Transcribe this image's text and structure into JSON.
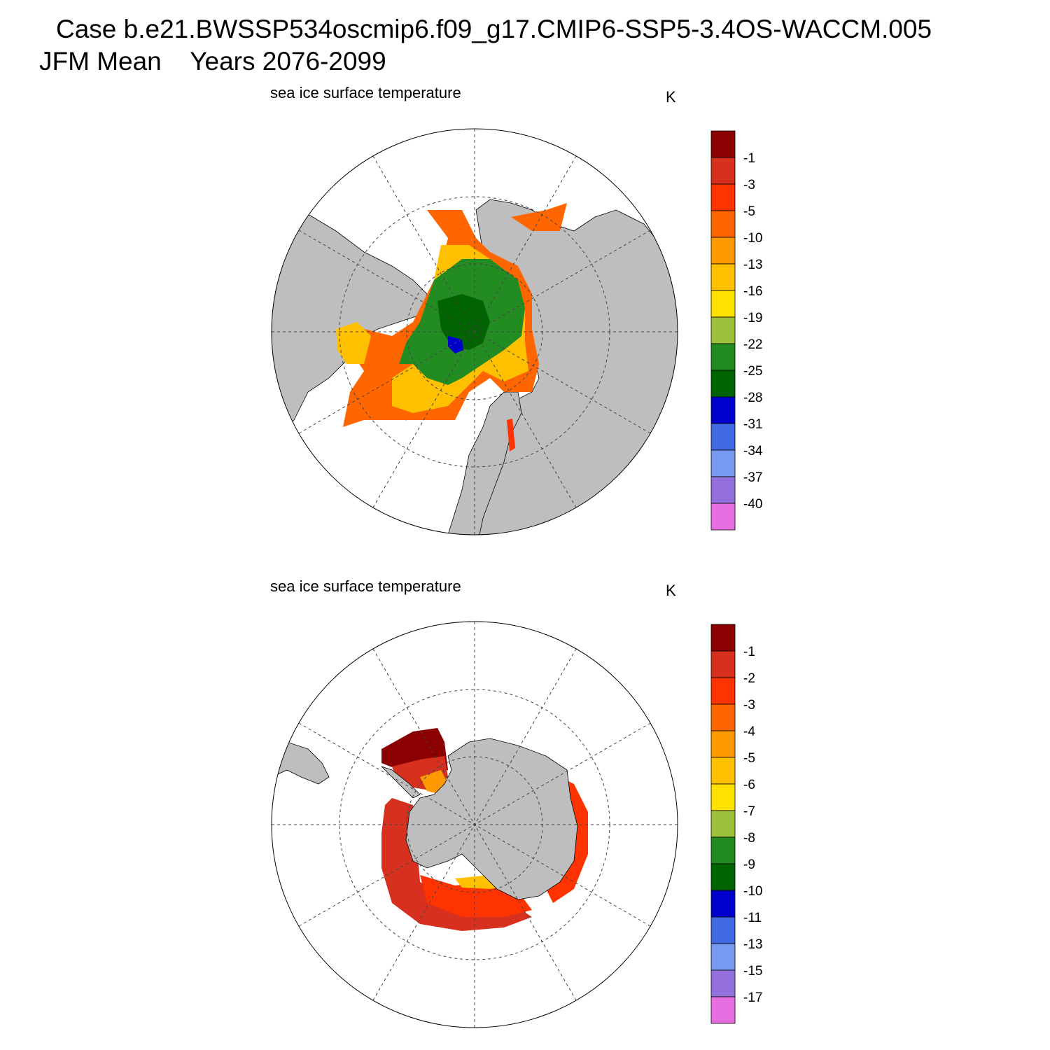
{
  "header": {
    "line1": "Case b.e21.BWSSP534oscmip6.f09_g17.CMIP6-SSP5-3.4OS-WACCM.005",
    "line2": "JFM Mean    Years 2076-2099"
  },
  "colors": {
    "land": "#bebebe",
    "background": "#ffffff",
    "scale": [
      "#8b0000",
      "#d7301f",
      "#ff3300",
      "#ff6600",
      "#ff9900",
      "#ffc000",
      "#ffe100",
      "#9dc13c",
      "#228b22",
      "#006400",
      "#0000cd",
      "#4169e1",
      "#7799f0",
      "#9370db",
      "#e76ee0"
    ]
  },
  "north_panel": {
    "title": "sea ice surface temperature",
    "units": "K",
    "colorbar_labels": [
      "-1",
      "-3",
      "-5",
      "-10",
      "-13",
      "-16",
      "-19",
      "-22",
      "-25",
      "-28",
      "-31",
      "-34",
      "-37",
      "-40"
    ]
  },
  "south_panel": {
    "title": "sea ice surface temperature",
    "units": "K",
    "colorbar_labels": [
      "-1",
      "-2",
      "-3",
      "-4",
      "-5",
      "-6",
      "-7",
      "-8",
      "-9",
      "-10",
      "-11",
      "-13",
      "-15",
      "-17"
    ]
  }
}
